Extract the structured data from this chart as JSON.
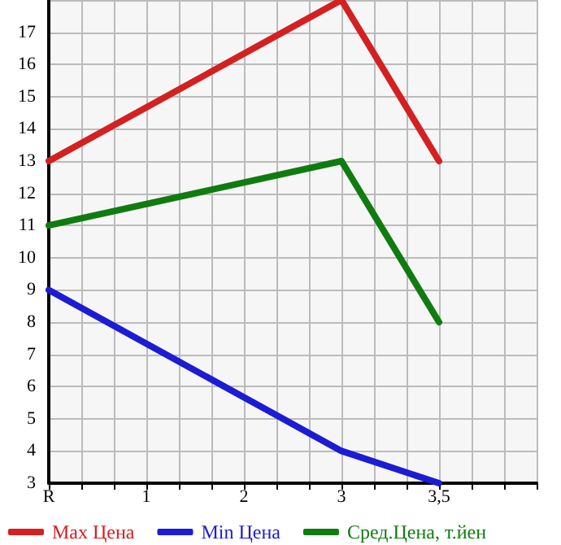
{
  "chart_data": {
    "type": "line",
    "categories": [
      "R",
      "1",
      "2",
      "3",
      "3,5",
      null
    ],
    "series": [
      {
        "name": "Max Цена",
        "color": "#d42020",
        "values": [
          13,
          null,
          null,
          18,
          13,
          null
        ]
      },
      {
        "name": "Min Цена",
        "color": "#1c1cd4",
        "values": [
          9,
          null,
          null,
          4,
          3,
          null
        ]
      },
      {
        "name": "Сред.Цена, т.йен",
        "color": "#107c10",
        "values": [
          11,
          null,
          null,
          13,
          8,
          null
        ]
      }
    ],
    "ylim": [
      3,
      18
    ],
    "yticks": [
      3,
      4,
      5,
      6,
      7,
      8,
      9,
      10,
      11,
      12,
      13,
      14,
      15,
      16,
      17
    ],
    "grid": true,
    "legend": "bottom",
    "marker": "none",
    "line_style": "solid"
  }
}
